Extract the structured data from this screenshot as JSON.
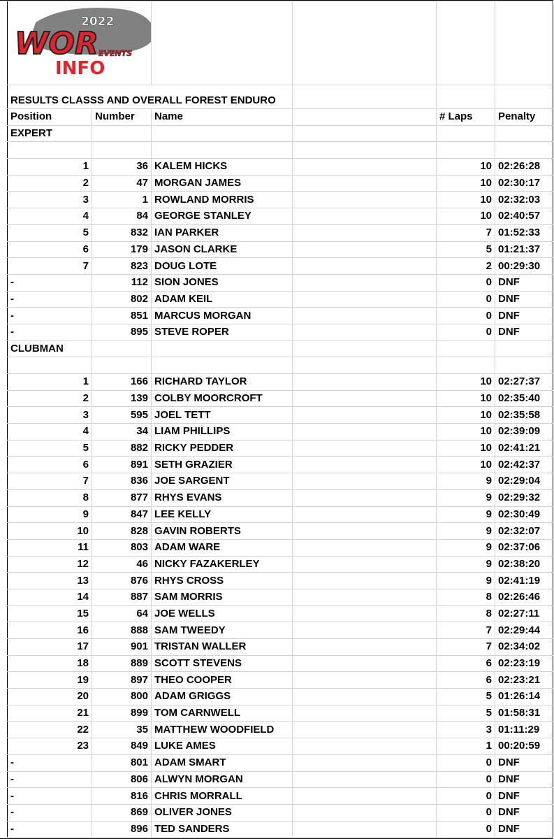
{
  "logo": {
    "year": "2022",
    "brand": "WOR",
    "sub": "EVENTS",
    "info": "INFO",
    "colors": {
      "red": "#e8202a",
      "gray": "#6b6b6b"
    }
  },
  "title": "RESULTS CLASSS AND OVERALL FOREST ENDURO",
  "headers": {
    "position": "Position",
    "number": "Number",
    "name": "Name",
    "laps": "# Laps",
    "penalty": "Penalty"
  },
  "classes": [
    {
      "name": "EXPERT",
      "rows": [
        [
          "1",
          "36",
          "KALEM HICKS",
          "10",
          "02:26:28"
        ],
        [
          "2",
          "47",
          "MORGAN JAMES",
          "10",
          "02:30:17"
        ],
        [
          "3",
          "1",
          "ROWLAND MORRIS",
          "10",
          "02:32:03"
        ],
        [
          "4",
          "84",
          "GEORGE STANLEY",
          "10",
          "02:40:57"
        ],
        [
          "5",
          "832",
          "IAN PARKER",
          "7",
          "01:52:33"
        ],
        [
          "6",
          "179",
          "JASON CLARKE",
          "5",
          "01:21:37"
        ],
        [
          "7",
          "823",
          "DOUG LOTE",
          "2",
          "00:29:30"
        ],
        [
          "-",
          "112",
          "SION JONES",
          "0",
          "DNF"
        ],
        [
          "-",
          "802",
          "ADAM KEIL",
          "0",
          "DNF"
        ],
        [
          "-",
          "851",
          "MARCUS MORGAN",
          "0",
          "DNF"
        ],
        [
          "-",
          "895",
          "STEVE ROPER",
          "0",
          "DNF"
        ]
      ]
    },
    {
      "name": "CLUBMAN",
      "rows": [
        [
          "1",
          "166",
          "RICHARD TAYLOR",
          "10",
          "02:27:37"
        ],
        [
          "2",
          "139",
          "COLBY MOORCROFT",
          "10",
          "02:35:40"
        ],
        [
          "3",
          "595",
          "JOEL TETT",
          "10",
          "02:35:58"
        ],
        [
          "4",
          "34",
          "LIAM PHILLIPS",
          "10",
          "02:39:09"
        ],
        [
          "5",
          "882",
          "RICKY PEDDER",
          "10",
          "02:41:21"
        ],
        [
          "6",
          "891",
          "SETH GRAZIER",
          "10",
          "02:42:37"
        ],
        [
          "7",
          "836",
          "JOE SARGENT",
          "9",
          "02:29:04"
        ],
        [
          "8",
          "877",
          "RHYS EVANS",
          "9",
          "02:29:32"
        ],
        [
          "9",
          "847",
          "LEE KELLY",
          "9",
          "02:30:49"
        ],
        [
          "10",
          "828",
          "GAVIN ROBERTS",
          "9",
          "02:32:07"
        ],
        [
          "11",
          "803",
          "ADAM WARE",
          "9",
          "02:37:06"
        ],
        [
          "12",
          "46",
          "NICKY FAZAKERLEY",
          "9",
          "02:38:20"
        ],
        [
          "13",
          "876",
          "RHYS CROSS",
          "9",
          "02:41:19"
        ],
        [
          "14",
          "887",
          "SAM MORRIS",
          "8",
          "02:26:46"
        ],
        [
          "15",
          "64",
          "JOE WELLS",
          "8",
          "02:27:11"
        ],
        [
          "16",
          "888",
          "SAM TWEEDY",
          "7",
          "02:29:44"
        ],
        [
          "17",
          "901",
          "TRISTAN WALLER",
          "7",
          "02:34:02"
        ],
        [
          "18",
          "889",
          "SCOTT STEVENS",
          "6",
          "02:23:19"
        ],
        [
          "19",
          "897",
          "THEO COOPER",
          "6",
          "02:23:21"
        ],
        [
          "20",
          "800",
          "ADAM GRIGGS",
          "5",
          "01:26:14"
        ],
        [
          "21",
          "899",
          "TOM CARNWELL",
          "5",
          "01:58:31"
        ],
        [
          "22",
          "35",
          "MATTHEW WOODFIELD",
          "3",
          "01:11:29"
        ],
        [
          "23",
          "849",
          "LUKE AMES",
          "1",
          "00:20:59"
        ],
        [
          "-",
          "801",
          "ADAM SMART",
          "0",
          "DNF"
        ],
        [
          "-",
          "806",
          "ALWYN MORGAN",
          "0",
          "DNF"
        ],
        [
          "-",
          "816",
          "CHRIS MORRALL",
          "0",
          "DNF"
        ],
        [
          "-",
          "869",
          "OLIVER JONES",
          "0",
          "DNF"
        ],
        [
          "-",
          "896",
          "TED SANDERS",
          "0",
          "DNF"
        ]
      ]
    }
  ]
}
